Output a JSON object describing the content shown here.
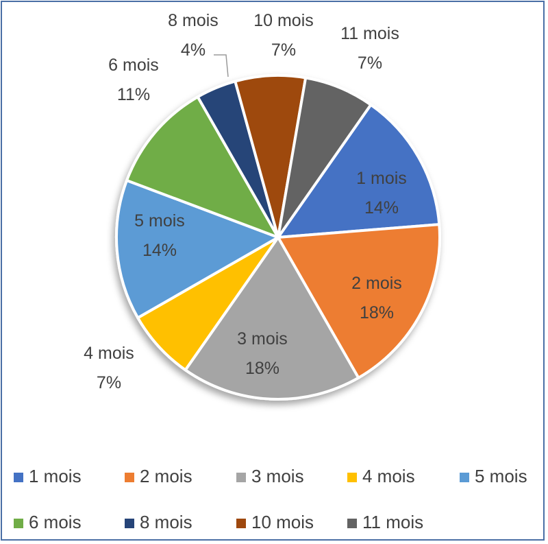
{
  "chart_data": {
    "type": "pie",
    "title": "",
    "legend_position": "bottom",
    "slices": [
      {
        "label": "1 mois",
        "percent": "14%",
        "value": 14,
        "color": "#4472C4",
        "label_inside": true,
        "label_color": "#404040"
      },
      {
        "label": "2 mois",
        "percent": "18%",
        "value": 18,
        "color": "#ED7D31",
        "label_inside": true,
        "label_color": "#404040"
      },
      {
        "label": "3 mois",
        "percent": "18%",
        "value": 18,
        "color": "#A5A5A5",
        "label_inside": true,
        "label_color": "#404040"
      },
      {
        "label": "4 mois",
        "percent": "7%",
        "value": 7,
        "color": "#FFC000",
        "label_inside": false,
        "label_color": "#404040"
      },
      {
        "label": "5 mois",
        "percent": "14%",
        "value": 14,
        "color": "#5B9BD5",
        "label_inside": true,
        "label_color": "#404040"
      },
      {
        "label": "6 mois",
        "percent": "11%",
        "value": 11,
        "color": "#70AD47",
        "label_inside": false,
        "label_color": "#404040"
      },
      {
        "label": "8 mois",
        "percent": "4%",
        "value": 4,
        "color": "#264478",
        "label_inside": false,
        "label_color": "#404040"
      },
      {
        "label": "10 mois",
        "percent": "7%",
        "value": 7,
        "color": "#9E480E",
        "label_inside": false,
        "label_color": "#404040"
      },
      {
        "label": "11 mois",
        "percent": "7%",
        "value": 7,
        "color": "#636363",
        "label_inside": false,
        "label_color": "#404040"
      }
    ]
  }
}
